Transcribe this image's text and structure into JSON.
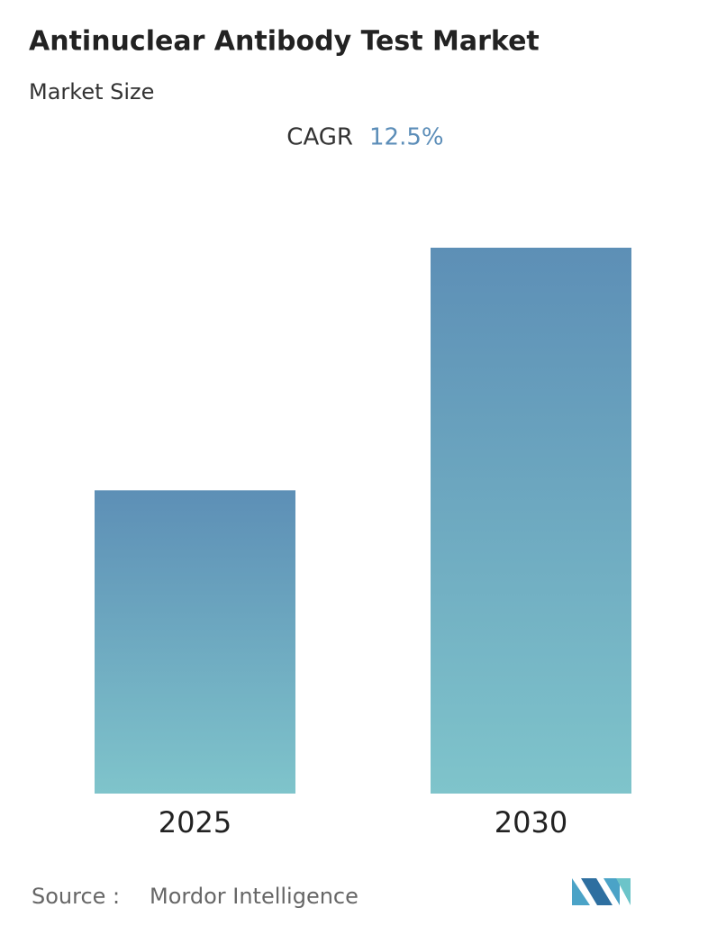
{
  "chart_data": {
    "type": "bar",
    "title": "Antinuclear Antibody Test Market",
    "subtitle": "Market Size",
    "cagr_label": "CAGR",
    "cagr": "12.5%",
    "categories": [
      "2025",
      "2030"
    ],
    "values": [
      1.0,
      1.8
    ],
    "ylim": [
      0,
      1.8
    ],
    "colors": [
      "#5d8fb6",
      "#7fc4cb"
    ],
    "source_label": "Source :",
    "source": "Mordor Intelligence"
  }
}
